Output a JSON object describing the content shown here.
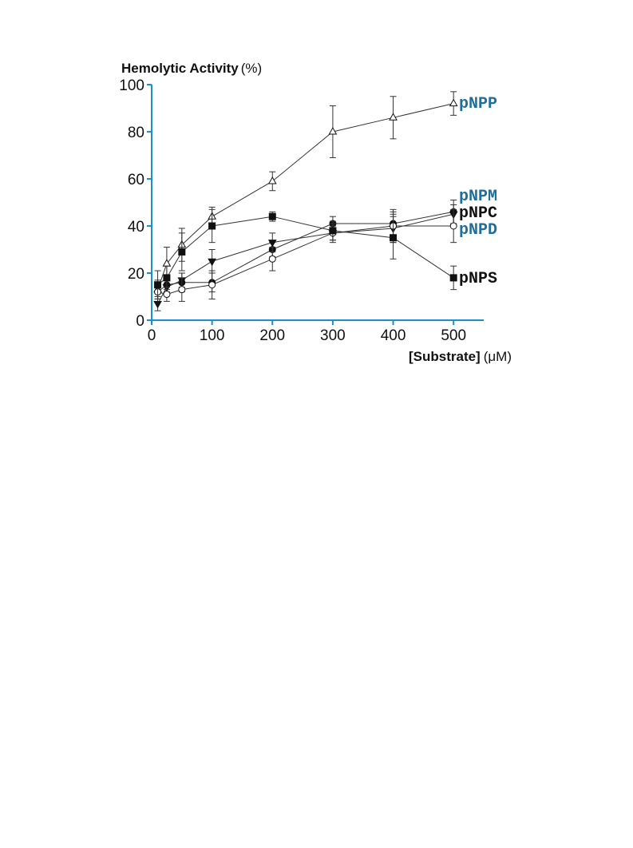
{
  "chart_data": {
    "type": "line",
    "ylabel_main": "Hemolytic Activity",
    "ylabel_unit": "(%)",
    "xlabel_main": "[Substrate]",
    "xlabel_unit": "(μM)",
    "xlim": [
      0,
      550
    ],
    "ylim": [
      0,
      100
    ],
    "xticks": [
      0,
      100,
      200,
      300,
      400,
      500
    ],
    "yticks": [
      0,
      20,
      40,
      60,
      80,
      100
    ],
    "axis_color": "#1a8fc9",
    "grid": false,
    "series": [
      {
        "name": "pNPP",
        "label_color": "#1f6e99",
        "marker": "triangle-up-open",
        "x": [
          10,
          25,
          50,
          100,
          200,
          300,
          400,
          500
        ],
        "y": [
          13,
          24,
          32,
          44,
          59,
          80,
          86,
          92
        ],
        "err": [
          4,
          7,
          7,
          4,
          4,
          11,
          9,
          5
        ]
      },
      {
        "name": "pNPM",
        "label_color": "#1f6e99",
        "marker": "circle-filled",
        "x": [
          10,
          25,
          50,
          100,
          200,
          300,
          400,
          500
        ],
        "y": [
          12,
          15,
          16,
          16,
          30,
          41,
          41,
          46
        ],
        "err": [
          3,
          3,
          4,
          4,
          3,
          3,
          5,
          5
        ]
      },
      {
        "name": "pNPC",
        "label_color": "#111111",
        "marker": "triangle-down-filled",
        "x": [
          10,
          25,
          50,
          100,
          200,
          300,
          400,
          500
        ],
        "y": [
          7,
          14,
          17,
          25,
          33,
          37,
          39,
          45
        ],
        "err": [
          3,
          3,
          3,
          5,
          4,
          4,
          6,
          4
        ]
      },
      {
        "name": "pNPD",
        "label_color": "#1f6e99",
        "marker": "circle-open",
        "x": [
          10,
          25,
          50,
          100,
          200,
          300,
          400,
          500
        ],
        "y": [
          12,
          11,
          13,
          15,
          26,
          37,
          40,
          40
        ],
        "err": [
          3,
          3,
          5,
          6,
          5,
          3,
          7,
          7
        ]
      },
      {
        "name": "pNPS",
        "label_color": "#111111",
        "marker": "square-filled",
        "x": [
          10,
          25,
          50,
          100,
          200,
          300,
          400,
          500
        ],
        "y": [
          15,
          18,
          29,
          40,
          44,
          38,
          35,
          18
        ],
        "err": [
          6,
          5,
          8,
          7,
          2,
          4,
          9,
          5
        ]
      }
    ]
  }
}
